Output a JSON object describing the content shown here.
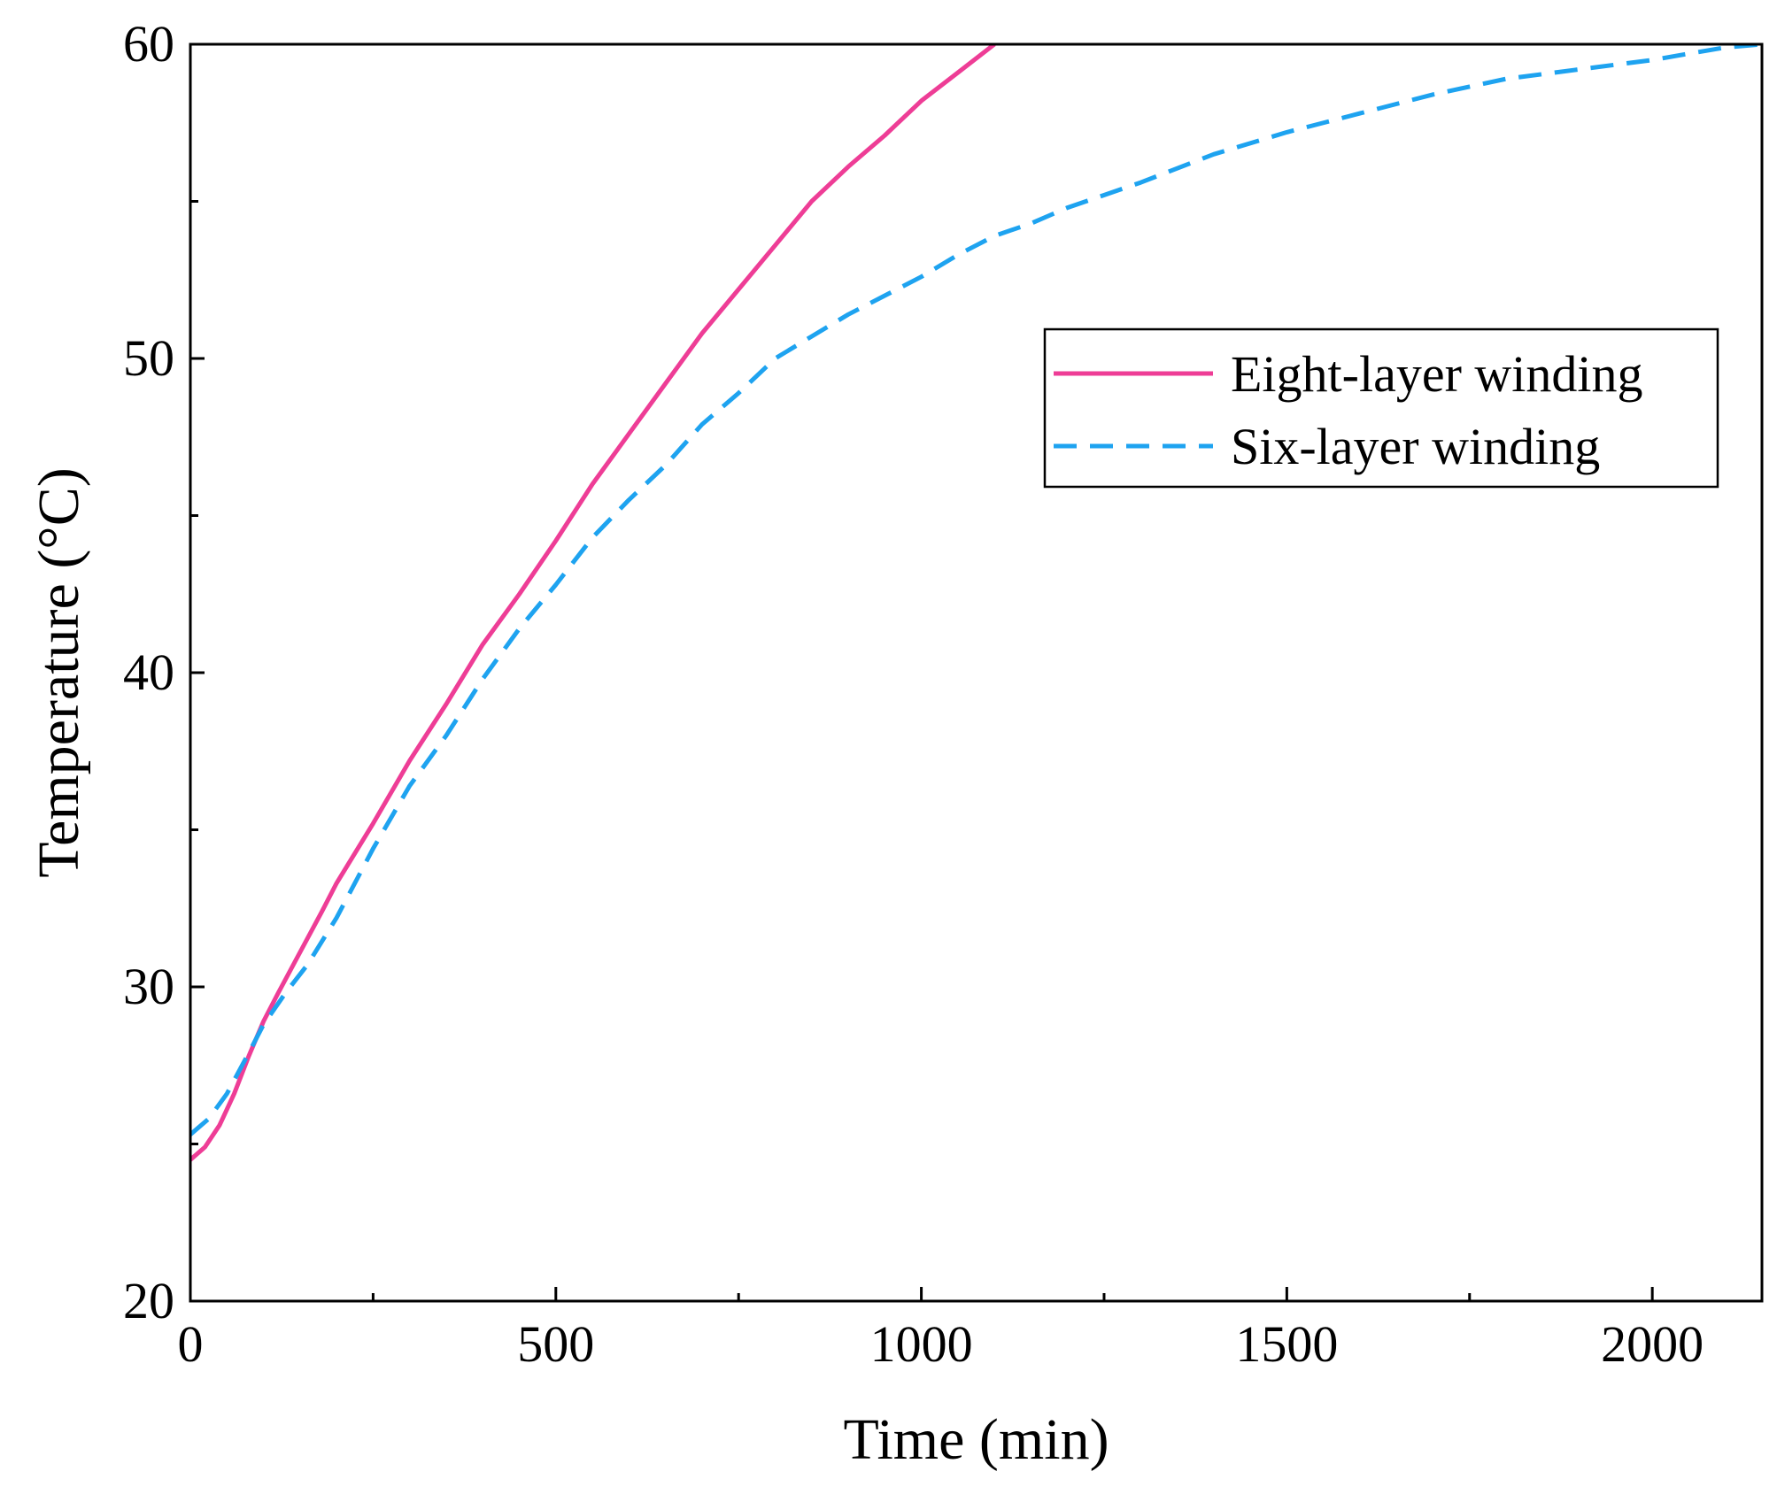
{
  "chart_data": {
    "type": "line",
    "title": "",
    "xlabel": "Time (min)",
    "ylabel": "Temperature (°C)",
    "xlim": [
      0,
      2150
    ],
    "ylim": [
      20,
      60
    ],
    "x_ticks": [
      0,
      500,
      1000,
      1500,
      2000
    ],
    "x_tick_labels": [
      "0",
      "500",
      "1000",
      "1500",
      "2000"
    ],
    "x_minor_ticks": [
      250,
      750,
      1250,
      1750
    ],
    "y_ticks": [
      20,
      30,
      40,
      50,
      60
    ],
    "y_tick_labels": [
      "20",
      "30",
      "40",
      "50",
      "60"
    ],
    "y_minor_ticks": [
      25,
      35,
      45,
      55
    ],
    "grid": false,
    "legend_position": "upper-right",
    "series": [
      {
        "name": "Eight-layer winding",
        "color": "#ee3d96",
        "style": "solid",
        "x": [
          0,
          20,
          40,
          60,
          80,
          100,
          120,
          150,
          180,
          200,
          250,
          300,
          350,
          400,
          450,
          500,
          550,
          600,
          650,
          700,
          750,
          800,
          850,
          900,
          950,
          1000,
          1050,
          1100
        ],
        "y": [
          24.5,
          24.9,
          25.6,
          26.6,
          27.8,
          28.9,
          29.8,
          31.1,
          32.4,
          33.3,
          35.2,
          37.2,
          39.0,
          40.9,
          42.5,
          44.2,
          46.0,
          47.6,
          49.2,
          50.8,
          52.2,
          53.6,
          55.0,
          56.1,
          57.1,
          58.2,
          59.1,
          60.0
        ]
      },
      {
        "name": "Six-layer winding",
        "color": "#1ea3f0",
        "style": "dashed",
        "x": [
          0,
          25,
          50,
          80,
          100,
          130,
          160,
          200,
          250,
          300,
          350,
          400,
          450,
          500,
          550,
          600,
          650,
          700,
          750,
          800,
          850,
          900,
          950,
          1000,
          1050,
          1100,
          1150,
          1200,
          1300,
          1400,
          1500,
          1600,
          1700,
          1800,
          1900,
          2000,
          2050,
          2100,
          2150
        ],
        "y": [
          25.3,
          25.8,
          26.6,
          27.9,
          28.8,
          29.8,
          30.7,
          32.2,
          34.4,
          36.4,
          38.0,
          39.8,
          41.4,
          42.8,
          44.3,
          45.5,
          46.6,
          47.9,
          48.9,
          50.0,
          50.7,
          51.4,
          52.0,
          52.6,
          53.3,
          53.9,
          54.3,
          54.8,
          55.6,
          56.5,
          57.2,
          57.8,
          58.4,
          58.9,
          59.2,
          59.5,
          59.7,
          59.9,
          60.0
        ]
      }
    ]
  }
}
